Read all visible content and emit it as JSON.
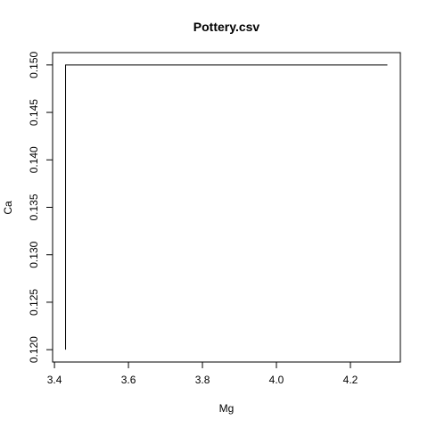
{
  "chart_data": {
    "type": "line",
    "title": "Pottery.csv",
    "xlabel": "Mg",
    "ylabel": "Ca",
    "xlim": [
      3.395,
      4.335
    ],
    "ylim": [
      0.1187,
      0.1513
    ],
    "x_ticks": [
      3.4,
      3.6,
      3.8,
      4.0,
      4.2
    ],
    "x_tick_labels": [
      "3.4",
      "3.6",
      "3.8",
      "4.0",
      "4.2"
    ],
    "y_ticks": [
      0.12,
      0.125,
      0.13,
      0.135,
      0.14,
      0.145,
      0.15
    ],
    "y_tick_labels": [
      "0.120",
      "0.125",
      "0.130",
      "0.135",
      "0.140",
      "0.145",
      "0.150"
    ],
    "grid": false,
    "series": [
      {
        "x": [
          3.43,
          3.43,
          4.3
        ],
        "y": [
          0.12,
          0.15,
          0.15
        ]
      }
    ]
  }
}
